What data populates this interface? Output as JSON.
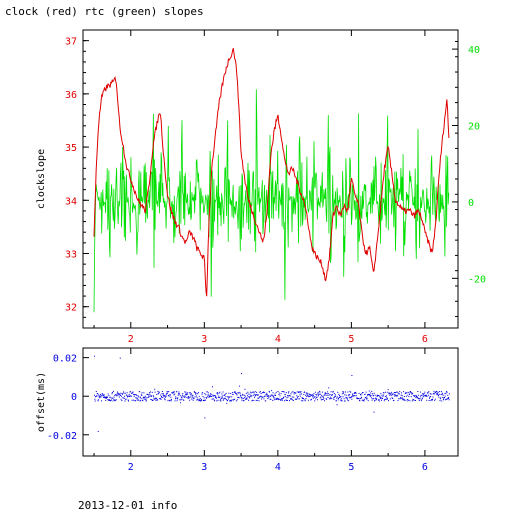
{
  "title": "clock (red) rtc (green) slopes",
  "footer": "2013-12-01 info",
  "colors": {
    "clock": "#e00000",
    "rtc": "#00e000",
    "offset": "#0000e0",
    "axis": "#000000"
  },
  "chart_data": [
    {
      "type": "line",
      "title": "clock (red) rtc (green) slopes",
      "xlabel": "",
      "ylabel": "clockslope",
      "xlim": [
        1.35,
        6.45
      ],
      "ylim": [
        31.6,
        37.2
      ],
      "y2lim": [
        -33,
        45
      ],
      "xticks": [
        2,
        3,
        4,
        5,
        6
      ],
      "yticks": [
        32,
        33,
        34,
        35,
        36,
        37
      ],
      "y2ticks": [
        -20,
        0,
        20,
        40
      ],
      "series": [
        {
          "name": "clock",
          "axis": "left",
          "color": "#e00000",
          "x": [
            1.5,
            1.53,
            1.56,
            1.6,
            1.65,
            1.7,
            1.75,
            1.8,
            1.85,
            1.9,
            1.95,
            2.0,
            2.05,
            2.1,
            2.15,
            2.2,
            2.25,
            2.3,
            2.35,
            2.4,
            2.45,
            2.5,
            2.55,
            2.6,
            2.65,
            2.7,
            2.75,
            2.8,
            2.85,
            2.9,
            2.95,
            3.0,
            3.03,
            3.06,
            3.1,
            3.15,
            3.2,
            3.25,
            3.3,
            3.35,
            3.4,
            3.45,
            3.5,
            3.55,
            3.6,
            3.65,
            3.7,
            3.75,
            3.8,
            3.85,
            3.9,
            3.95,
            4.0,
            4.05,
            4.1,
            4.15,
            4.2,
            4.25,
            4.3,
            4.35,
            4.4,
            4.45,
            4.5,
            4.55,
            4.6,
            4.65,
            4.7,
            4.75,
            4.8,
            4.85,
            4.9,
            4.95,
            5.0,
            5.05,
            5.1,
            5.15,
            5.2,
            5.25,
            5.3,
            5.35,
            5.4,
            5.45,
            5.5,
            5.55,
            5.6,
            5.65,
            5.7,
            5.75,
            5.8,
            5.85,
            5.9,
            5.95,
            6.0,
            6.05,
            6.1,
            6.15,
            6.2,
            6.25,
            6.3,
            6.33
          ],
          "y": [
            33.3,
            34.6,
            35.4,
            35.9,
            36.1,
            36.15,
            36.2,
            36.3,
            35.4,
            35.0,
            34.6,
            34.4,
            34.2,
            34.0,
            33.9,
            33.8,
            34.3,
            35.0,
            35.4,
            35.7,
            34.8,
            34.1,
            33.8,
            33.6,
            33.5,
            33.3,
            33.2,
            33.4,
            33.3,
            33.1,
            33.0,
            32.9,
            32.1,
            33.5,
            34.6,
            35.2,
            35.8,
            36.2,
            36.5,
            36.7,
            36.85,
            36.3,
            34.9,
            34.4,
            34.0,
            33.8,
            33.6,
            33.4,
            33.2,
            33.7,
            34.8,
            35.3,
            35.6,
            35.2,
            34.7,
            34.5,
            34.6,
            34.4,
            34.2,
            34.0,
            33.7,
            33.2,
            33.0,
            32.9,
            32.8,
            32.5,
            32.9,
            33.7,
            33.9,
            33.7,
            33.9,
            33.8,
            34.4,
            34.1,
            33.9,
            33.3,
            33.0,
            33.1,
            32.6,
            33.2,
            33.9,
            34.6,
            35.0,
            34.5,
            34.0,
            33.9,
            33.8,
            33.8,
            33.8,
            33.7,
            33.8,
            33.7,
            33.4,
            33.2,
            33.0,
            33.6,
            34.6,
            35.3,
            35.9,
            35.1
          ]
        },
        {
          "name": "rtc",
          "axis": "right",
          "color": "#00e000",
          "x": [
            1.5,
            1.6,
            1.7,
            1.8,
            1.9,
            2.0,
            2.1,
            2.2,
            2.3,
            2.4,
            2.5,
            2.6,
            2.7,
            2.8,
            2.9,
            3.0,
            3.1,
            3.2,
            3.3,
            3.4,
            3.5,
            3.6,
            3.7,
            3.8,
            3.9,
            4.0,
            4.1,
            4.2,
            4.3,
            4.4,
            4.5,
            4.6,
            4.7,
            4.8,
            4.9,
            5.0,
            5.1,
            5.2,
            5.3,
            5.4,
            5.5,
            5.6,
            5.7,
            5.8,
            5.9,
            6.0,
            6.1,
            6.2,
            6.3,
            6.33
          ],
          "y": [
            30,
            -20,
            25,
            -25,
            33,
            -15,
            28,
            -22,
            38,
            -27,
            31,
            -18,
            36,
            -20,
            25,
            -12,
            30,
            -24,
            35,
            -16,
            32,
            -26,
            37,
            -19,
            28,
            -23,
            34,
            -17,
            41,
            -25,
            30,
            -21,
            36,
            -14,
            27,
            -26,
            33,
            -18,
            30,
            -22,
            35,
            -24,
            29,
            -20,
            32,
            -25,
            28,
            -17,
            36,
            -22
          ]
        }
      ]
    },
    {
      "type": "scatter",
      "title": "",
      "xlabel": "",
      "ylabel": "offset(ms)",
      "xlim": [
        1.35,
        6.45
      ],
      "ylim": [
        -0.031,
        0.025
      ],
      "xticks": [
        2,
        3,
        4,
        5,
        6
      ],
      "yticks": [
        -0.02,
        0,
        0.02
      ],
      "ytick_labels": [
        "-0.02",
        "0",
        "0.02"
      ],
      "series": [
        {
          "name": "offset",
          "color": "#0000e0",
          "x": [
            1.5,
            1.55,
            1.6,
            1.65,
            1.7,
            1.75,
            1.8,
            1.85,
            1.9,
            1.95,
            2.0,
            2.1,
            2.2,
            2.3,
            2.4,
            2.5,
            2.6,
            2.7,
            2.8,
            2.9,
            3.0,
            3.1,
            3.2,
            3.3,
            3.4,
            3.5,
            3.6,
            3.7,
            3.8,
            3.9,
            4.0,
            4.1,
            4.2,
            4.3,
            4.4,
            4.5,
            4.6,
            4.7,
            4.8,
            4.9,
            5.0,
            5.1,
            5.2,
            5.3,
            5.4,
            5.5,
            5.6,
            5.7,
            5.8,
            5.9,
            6.0,
            6.1,
            6.2,
            6.3
          ],
          "y": [
            0.021,
            -0.018,
            0.002,
            -0.003,
            0.001,
            -0.002,
            0.004,
            0.02,
            -0.004,
            0.003,
            -0.002,
            0.004,
            -0.005,
            0.003,
            -0.003,
            0.006,
            0.001,
            -0.004,
            0.003,
            -0.005,
            -0.011,
            0.004,
            0.002,
            -0.003,
            0.005,
            0.012,
            -0.004,
            0.002,
            0.004,
            -0.006,
            0.003,
            -0.004,
            0.006,
            -0.003,
            0.002,
            -0.005,
            0.004,
            0.003,
            -0.004,
            0.002,
            0.011,
            -0.006,
            0.004,
            -0.008,
            0.003,
            0.006,
            -0.004,
            0.002,
            -0.003,
            0.004,
            0.003,
            -0.005,
            0.002,
            0.001
          ]
        }
      ]
    }
  ]
}
